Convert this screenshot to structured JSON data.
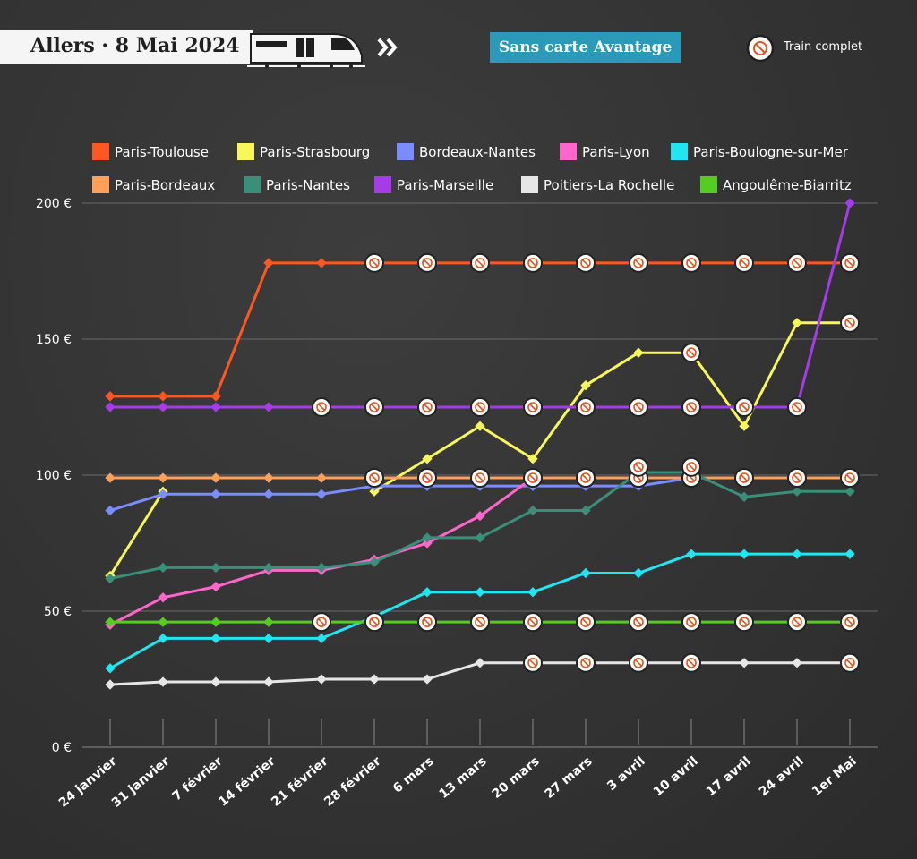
{
  "header": {
    "title": "Allers · 8 Mai 2024",
    "tag": "Sans carte Avantage",
    "legend_full_label": "Train complet",
    "icons": [
      "train-icon",
      "double-chevron-icon",
      "no-entry-icon"
    ]
  },
  "colors": {
    "background": "#333333",
    "tag": "#2b9ab8",
    "grid": "#6a6a6a"
  },
  "chart_data": {
    "type": "line",
    "title": "",
    "xlabel": "",
    "ylabel": "",
    "ylim": [
      0,
      200
    ],
    "yticks": [
      0,
      50,
      100,
      150,
      200
    ],
    "ytick_labels": [
      "0 €",
      "50 €",
      "100 €",
      "150 €",
      "200 €"
    ],
    "grid": true,
    "legend_placement": "top",
    "categories": [
      "24 janvier",
      "31 janvier",
      "7 février",
      "14 février",
      "21 février",
      "28 février",
      "6 mars",
      "13 mars",
      "20 mars",
      "27 mars",
      "3 avril",
      "10 avril",
      "17 avril",
      "24 avril",
      "1er Mai"
    ],
    "series": [
      {
        "name": "Paris-Toulouse",
        "color": "#ff5722",
        "values": [
          129,
          129,
          129,
          178,
          178,
          178,
          178,
          178,
          178,
          178,
          178,
          178,
          178,
          178,
          178
        ],
        "full_from": 5
      },
      {
        "name": "Paris-Strasbourg",
        "color": "#f7f75a",
        "values": [
          63,
          94,
          null,
          null,
          null,
          94,
          106,
          118,
          106,
          133,
          145,
          145,
          118,
          156,
          156
        ],
        "full_from": null,
        "full_points": [
          11,
          14
        ]
      },
      {
        "name": "Bordeaux-Nantes",
        "color": "#7b8cff",
        "values": [
          87,
          93,
          93,
          93,
          93,
          96,
          96,
          96,
          96,
          96,
          96,
          99,
          null,
          null,
          null
        ],
        "full_from": null
      },
      {
        "name": "Paris-Lyon",
        "color": "#ff66cc",
        "values": [
          45,
          55,
          59,
          65,
          65,
          69,
          75,
          85,
          99,
          null,
          null,
          null,
          null,
          null,
          null
        ],
        "full_from": null
      },
      {
        "name": "Paris-Boulogne-sur-Mer",
        "color": "#22e5f2",
        "values": [
          29,
          40,
          40,
          40,
          40,
          48,
          57,
          57,
          57,
          64,
          64,
          71,
          71,
          71,
          71
        ],
        "full_from": null
      },
      {
        "name": "Paris-Bordeaux",
        "color": "#ffa05a",
        "values": [
          99,
          99,
          99,
          99,
          99,
          99,
          99,
          99,
          99,
          99,
          99,
          99,
          99,
          99,
          99
        ],
        "full_from": 5
      },
      {
        "name": "Paris-Nantes",
        "color": "#3a8f7a",
        "values": [
          62,
          66,
          66,
          66,
          66,
          68,
          77,
          77,
          87,
          87,
          101,
          101,
          92,
          94,
          94
        ],
        "full_from": null
      },
      {
        "name": "Paris-Marseille",
        "color": "#a63be8",
        "values": [
          125,
          125,
          125,
          125,
          125,
          125,
          125,
          125,
          125,
          125,
          125,
          125,
          125,
          125,
          200
        ],
        "full_from": 4,
        "full_until": 13
      },
      {
        "name": "Poitiers-La Rochelle",
        "color": "#e6e6e6",
        "values": [
          23,
          24,
          24,
          24,
          25,
          25,
          25,
          31,
          31,
          31,
          31,
          31,
          31,
          31,
          31
        ],
        "full_from": null,
        "full_points": [
          8,
          9,
          10,
          11,
          14
        ]
      },
      {
        "name": "Angoulême-Biarritz",
        "color": "#55cc22",
        "values": [
          46,
          46,
          46,
          46,
          46,
          46,
          46,
          46,
          46,
          46,
          46,
          46,
          46,
          46,
          46
        ],
        "full_from": 4
      }
    ],
    "extra_full_markers": [
      {
        "category": 10,
        "value": 99
      },
      {
        "category": 11,
        "value": 99
      },
      {
        "category": 10,
        "value": 103
      },
      {
        "category": 11,
        "value": 103
      }
    ]
  }
}
